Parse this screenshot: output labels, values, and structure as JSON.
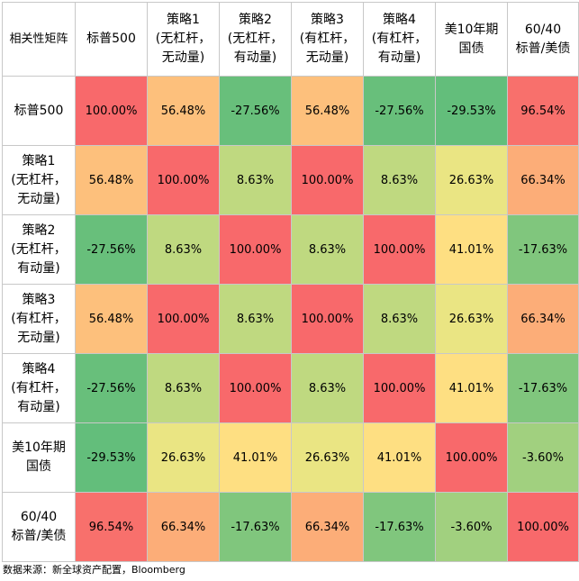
{
  "chart_data": {
    "type": "heatmap",
    "title": "",
    "corner_label": "相关性矩阵",
    "columns": [
      "标普500",
      "策略1\n(无杠杆，\n无动量)",
      "策略2\n(无杠杆，\n有动量)",
      "策略3\n(有杠杆，\n无动量)",
      "策略4\n(有杠杆，\n有动量)",
      "美10年期\n国债",
      "60/40\n标普/美债"
    ],
    "rows": [
      "标普500",
      "策略1\n(无杠杆，\n无动量)",
      "策略2\n(无杠杆，\n有动量)",
      "策略3\n(有杠杆，\n无动量)",
      "策略4\n(有杠杆，\n有动量)",
      "美10年期\n国债",
      "60/40\n标普/美债"
    ],
    "values": [
      [
        100.0,
        56.48,
        -27.56,
        56.48,
        -27.56,
        -29.53,
        96.54
      ],
      [
        56.48,
        100.0,
        8.63,
        100.0,
        8.63,
        26.63,
        66.34
      ],
      [
        -27.56,
        8.63,
        100.0,
        8.63,
        100.0,
        41.01,
        -17.63
      ],
      [
        56.48,
        100.0,
        8.63,
        100.0,
        8.63,
        26.63,
        66.34
      ],
      [
        -27.56,
        8.63,
        100.0,
        8.63,
        100.0,
        41.01,
        -17.63
      ],
      [
        -29.53,
        26.63,
        41.01,
        26.63,
        41.01,
        100.0,
        -3.6
      ],
      [
        96.54,
        66.34,
        -17.63,
        66.34,
        -17.63,
        -3.6,
        100.0
      ]
    ],
    "value_format": "percent_2dp",
    "color_scale": {
      "low": "#63be7b",
      "mid": "#ffeb84",
      "high": "#f8696b"
    }
  },
  "footer": {
    "source": "数据来源：新全球资产配置，Bloomberg"
  }
}
